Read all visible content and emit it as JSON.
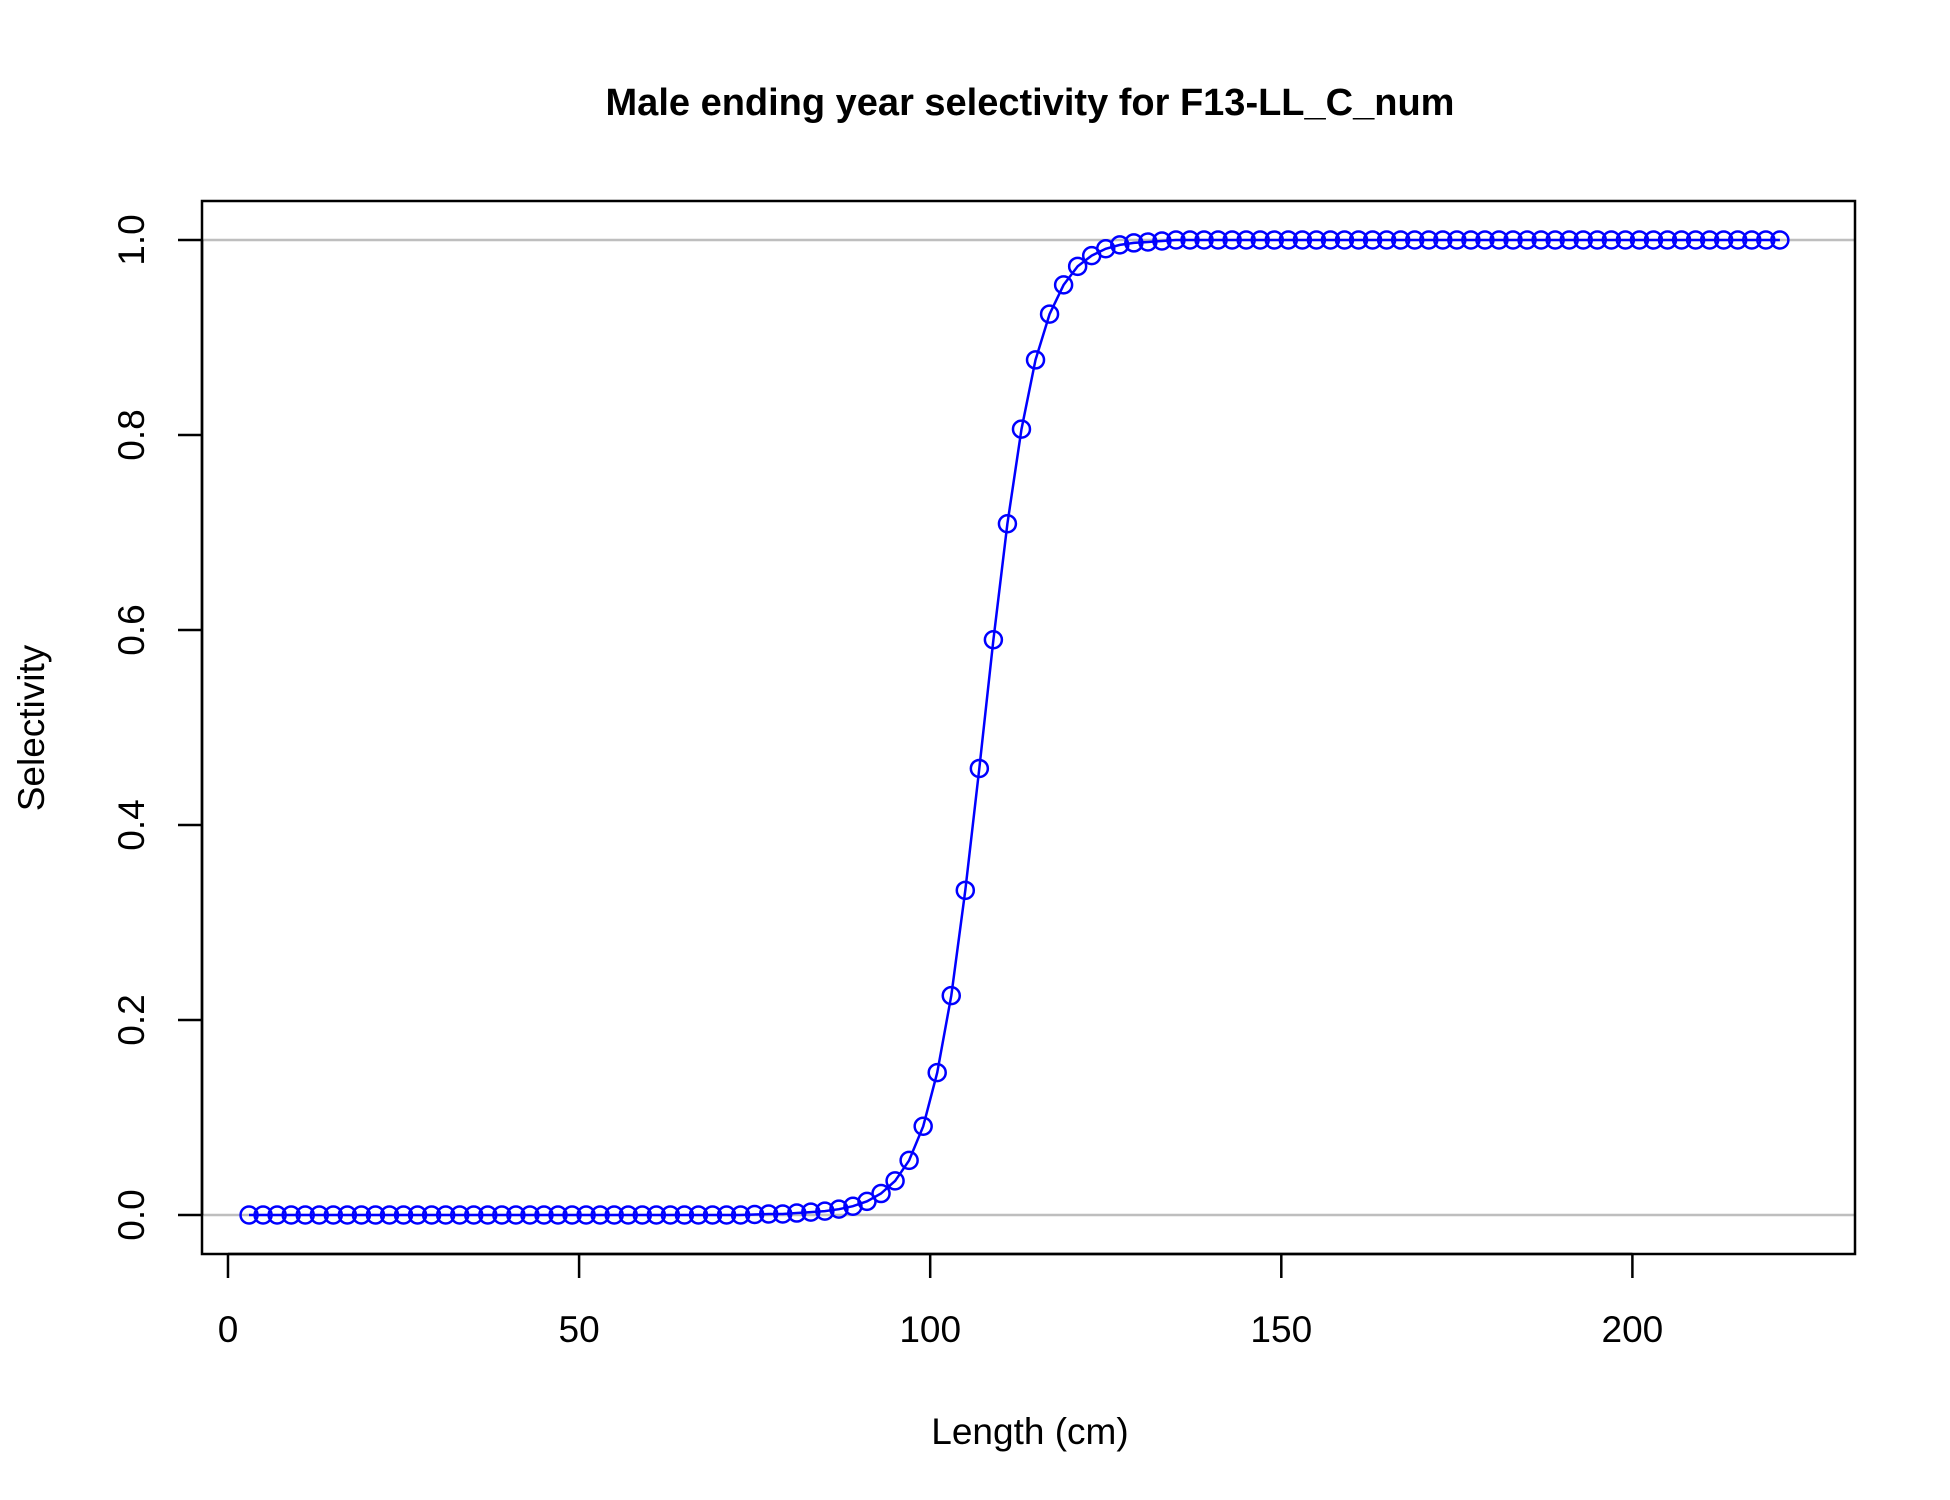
{
  "chart_data": {
    "type": "line",
    "title": "Male ending year selectivity for F13-LL_C_num",
    "xlabel": "Length (cm)",
    "ylabel": "Selectivity",
    "xlim": [
      -3.7,
      231.7
    ],
    "ylim": [
      -0.04,
      1.04
    ],
    "x_ticks": [
      0,
      50,
      100,
      150,
      200
    ],
    "x_tick_labels": [
      "0",
      "50",
      "100",
      "150",
      "200"
    ],
    "y_ticks": [
      0,
      0.2,
      0.4,
      0.6,
      0.8,
      1.0
    ],
    "y_tick_labels": [
      "0.0",
      "0.2",
      "0.4",
      "0.6",
      "0.8",
      "1.0"
    ],
    "reference_lines": [
      0,
      1
    ],
    "grid": false,
    "legend": "none",
    "colors": {
      "series": "#0000ff",
      "reference": "#bebebe",
      "axis": "#000000"
    },
    "series": [
      {
        "x": [
          3,
          5,
          7,
          9,
          11,
          13,
          15,
          17,
          19,
          21,
          23,
          25,
          27,
          29,
          31,
          33,
          35,
          37,
          39,
          41,
          43,
          45,
          47,
          49,
          51,
          53,
          55,
          57,
          59,
          61,
          63,
          65,
          67,
          69,
          71,
          73,
          75,
          77,
          79,
          81,
          83,
          85,
          87,
          89,
          91,
          93,
          95,
          97,
          99,
          101,
          103,
          105,
          107,
          109,
          111,
          113,
          115,
          117,
          119,
          121,
          123,
          125,
          127,
          129,
          131,
          133,
          135,
          137,
          139,
          141,
          143,
          145,
          147,
          149,
          151,
          153,
          155,
          157,
          159,
          161,
          163,
          165,
          167,
          169,
          171,
          173,
          175,
          177,
          179,
          181,
          183,
          185,
          187,
          189,
          191,
          193,
          195,
          197,
          199,
          201,
          203,
          205,
          207,
          209,
          211,
          213,
          215,
          217,
          219,
          221
        ],
        "y": [
          0,
          0,
          0,
          0,
          0,
          0,
          0,
          0,
          0,
          0,
          0,
          0,
          0,
          0,
          0,
          0,
          0,
          0,
          0,
          0,
          0,
          0,
          0,
          0,
          0,
          0,
          0,
          0,
          0,
          0,
          0,
          0,
          0,
          0,
          0,
          0,
          0.0005,
          0.001,
          0.001,
          0.002,
          0.003,
          0.004,
          0.006,
          0.009,
          0.014,
          0.022,
          0.035,
          0.056,
          0.091,
          0.146,
          0.225,
          0.333,
          0.458,
          0.59,
          0.709,
          0.806,
          0.877,
          0.924,
          0.954,
          0.973,
          0.984,
          0.991,
          0.995,
          0.997,
          0.998,
          0.999,
          1.0,
          1.0,
          1.0,
          1.0,
          1.0,
          1.0,
          1.0,
          1.0,
          1.0,
          1.0,
          1.0,
          1.0,
          1.0,
          1.0,
          1.0,
          1.0,
          1.0,
          1.0,
          1.0,
          1.0,
          1.0,
          1.0,
          1.0,
          1.0,
          1.0,
          1.0,
          1.0,
          1.0,
          1.0,
          1.0,
          1.0,
          1.0,
          1.0,
          1.0,
          1.0,
          1.0,
          1.0,
          1.0,
          1.0,
          1.0,
          1.0,
          1.0,
          1.0,
          1.0
        ]
      }
    ]
  }
}
